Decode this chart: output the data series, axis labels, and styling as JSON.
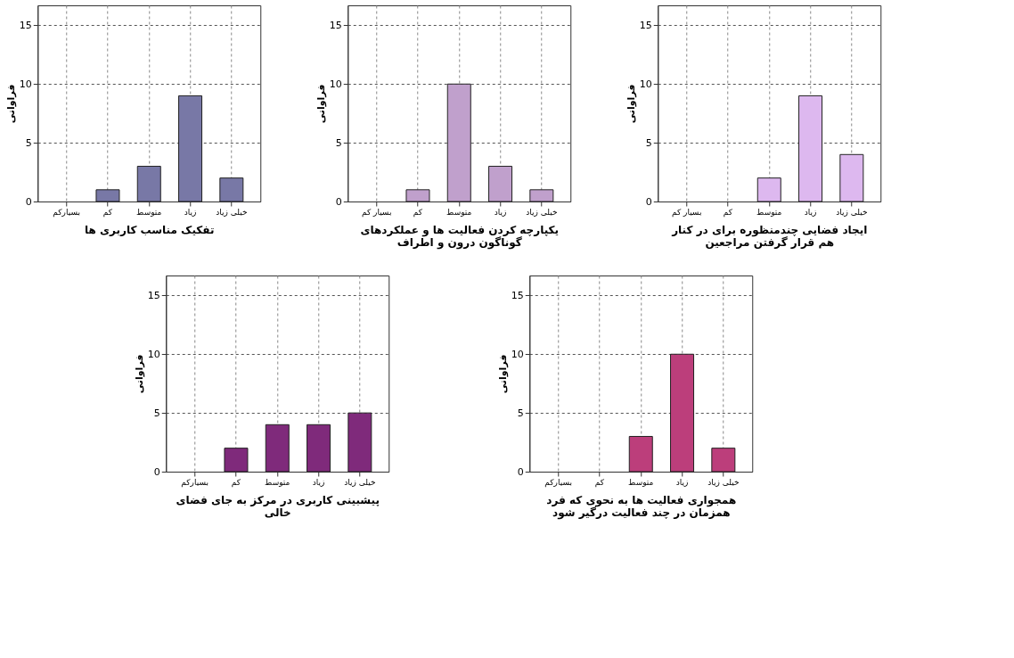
{
  "chart_data": [
    {
      "type": "bar",
      "xlabel": "تفکیک مناسب کاربری ها",
      "ylabel": "فراوانی",
      "categories": [
        "بسیارکم",
        "کم",
        "متوسط",
        "زیاد",
        "خیلی زیاد"
      ],
      "values": [
        0,
        1,
        3,
        9,
        2
      ],
      "color": "#7878a6",
      "ylim": [
        0,
        16.7
      ],
      "yticks": [
        0,
        5,
        10,
        15
      ],
      "grid": true
    },
    {
      "type": "bar",
      "xlabel": "یکپارچه کردن فعالیت ها و عملکردهای گوناگون درون و اطراف",
      "ylabel": "فراوانی",
      "categories": [
        "بسیار کم",
        "کم",
        "متوسط",
        "زیاد",
        "خیلی زیاد"
      ],
      "values": [
        0,
        1,
        10,
        3,
        1
      ],
      "color": "#c0a0cc",
      "ylim": [
        0,
        16.7
      ],
      "yticks": [
        0,
        5,
        10,
        15
      ],
      "grid": true
    },
    {
      "type": "bar",
      "xlabel": "ایجاد فضایی چندمنظوره برای در کنار هم قرار گرفتن مراجعین",
      "ylabel": "فراوانی",
      "categories": [
        "بسیار کم",
        "کم",
        "متوسط",
        "زیاد",
        "خیلی زیاد"
      ],
      "values": [
        0,
        0,
        2,
        9,
        4
      ],
      "color": "#ddb8ef",
      "ylim": [
        0,
        16.7
      ],
      "yticks": [
        0,
        5,
        10,
        15
      ],
      "grid": true
    },
    {
      "type": "bar",
      "xlabel": "پیشبینی کاربری در مرکز به جای فضای خالی",
      "ylabel": "فراوانی",
      "categories": [
        "بسیارکم",
        "کم",
        "متوسط",
        "زیاد",
        "خیلی زیاد"
      ],
      "values": [
        0,
        2,
        4,
        4,
        5
      ],
      "color": "#7f2a7b",
      "ylim": [
        0,
        16.7
      ],
      "yticks": [
        0,
        5,
        10,
        15
      ],
      "grid": true
    },
    {
      "type": "bar",
      "xlabel": "همجواری فعالیت ها به نحوی که فرد همزمان در چند فعالیت درگیر شود",
      "ylabel": "فراوانی",
      "categories": [
        "بسیارکم",
        "کم",
        "متوسط",
        "زیاد",
        "خیلی زیاد"
      ],
      "values": [
        0,
        0,
        3,
        10,
        2
      ],
      "color": "#bc3e7b",
      "ylim": [
        0,
        16.7
      ],
      "yticks": [
        0,
        5,
        10,
        15
      ],
      "grid": true
    }
  ]
}
